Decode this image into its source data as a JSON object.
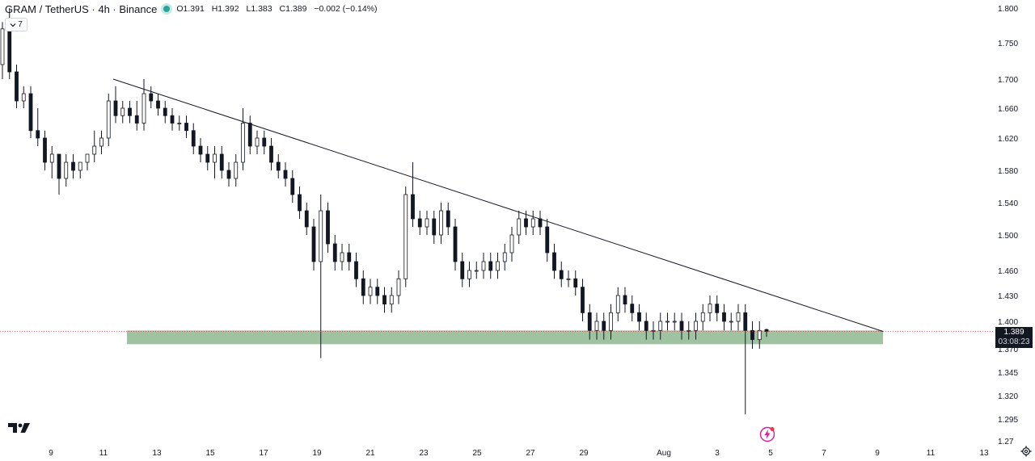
{
  "legend": {
    "symbol": "GRAM / TetherUS · 4h · Binance",
    "open": "O1.391",
    "high": "H1.392",
    "low": "L1.383",
    "close": "C1.389",
    "change": "−0.002 (−0.14%)"
  },
  "indicator_toggle": {
    "label": "7",
    "icon": "chevron-down-icon"
  },
  "last_price": {
    "value": "1.389",
    "countdown": "03:08:23"
  },
  "colors": {
    "candle": "#131722",
    "zone": "#9fc3a0",
    "trendline": "#131722",
    "legend_dot": "#26a69a",
    "price_tag_bg": "#131722",
    "flash_icon": "#d81b9a"
  },
  "icons": [
    "tradingview-logo-icon",
    "flash-icon",
    "settings-icon",
    "chevron-down-icon"
  ],
  "chart_data": {
    "type": "candlestick",
    "title": "",
    "interval": "4h",
    "y_axis": {
      "range": [
        1.27,
        1.8
      ],
      "ticks": [
        "1.800",
        "1.750",
        "1.700",
        "1.660",
        "1.620",
        "1.580",
        "1.540",
        "1.500",
        "1.460",
        "1.430",
        "1.400",
        "1.370",
        "1.345",
        "1.320",
        "1.295",
        "1.27"
      ]
    },
    "x_axis": {
      "ticks": [
        "9",
        "11",
        "13",
        "15",
        "17",
        "19",
        "21",
        "23",
        "25",
        "27",
        "29",
        "Aug",
        "3",
        "5",
        "7",
        "9",
        "11",
        "13"
      ]
    },
    "support_zone": {
      "from_date": "Jul 12",
      "to_date": "Aug 9",
      "low": 1.375,
      "high": 1.39
    },
    "trendline": {
      "from": {
        "date": "Jul 11",
        "price": 1.7
      },
      "to": {
        "date": "Aug 9",
        "price": 1.389
      }
    },
    "candles": [
      [
        1.72,
        1.78,
        1.7,
        1.77
      ],
      [
        1.77,
        1.8,
        1.7,
        1.71
      ],
      [
        1.71,
        1.72,
        1.66,
        1.67
      ],
      [
        1.67,
        1.69,
        1.66,
        1.68
      ],
      [
        1.68,
        1.69,
        1.62,
        1.63
      ],
      [
        1.63,
        1.66,
        1.61,
        1.62
      ],
      [
        1.62,
        1.63,
        1.58,
        1.59
      ],
      [
        1.59,
        1.61,
        1.57,
        1.6
      ],
      [
        1.6,
        1.6,
        1.55,
        1.57
      ],
      [
        1.57,
        1.6,
        1.56,
        1.59
      ],
      [
        1.59,
        1.6,
        1.57,
        1.58
      ],
      [
        1.58,
        1.59,
        1.57,
        1.59
      ],
      [
        1.59,
        1.6,
        1.58,
        1.6
      ],
      [
        1.6,
        1.63,
        1.59,
        1.61
      ],
      [
        1.61,
        1.63,
        1.6,
        1.62
      ],
      [
        1.62,
        1.68,
        1.61,
        1.67
      ],
      [
        1.67,
        1.69,
        1.64,
        1.65
      ],
      [
        1.65,
        1.67,
        1.64,
        1.66
      ],
      [
        1.66,
        1.67,
        1.64,
        1.65
      ],
      [
        1.65,
        1.67,
        1.63,
        1.64
      ],
      [
        1.64,
        1.7,
        1.63,
        1.68
      ],
      [
        1.68,
        1.69,
        1.66,
        1.67
      ],
      [
        1.67,
        1.68,
        1.65,
        1.66
      ],
      [
        1.66,
        1.67,
        1.64,
        1.65
      ],
      [
        1.65,
        1.66,
        1.63,
        1.64
      ],
      [
        1.64,
        1.65,
        1.63,
        1.64
      ],
      [
        1.64,
        1.65,
        1.62,
        1.63
      ],
      [
        1.63,
        1.64,
        1.6,
        1.61
      ],
      [
        1.61,
        1.62,
        1.59,
        1.6
      ],
      [
        1.6,
        1.61,
        1.58,
        1.59
      ],
      [
        1.59,
        1.61,
        1.57,
        1.6
      ],
      [
        1.6,
        1.61,
        1.57,
        1.58
      ],
      [
        1.58,
        1.59,
        1.56,
        1.57
      ],
      [
        1.57,
        1.6,
        1.56,
        1.59
      ],
      [
        1.59,
        1.66,
        1.58,
        1.64
      ],
      [
        1.64,
        1.65,
        1.6,
        1.61
      ],
      [
        1.61,
        1.63,
        1.6,
        1.62
      ],
      [
        1.62,
        1.63,
        1.6,
        1.61
      ],
      [
        1.61,
        1.62,
        1.58,
        1.59
      ],
      [
        1.59,
        1.6,
        1.57,
        1.58
      ],
      [
        1.58,
        1.59,
        1.56,
        1.57
      ],
      [
        1.57,
        1.58,
        1.54,
        1.55
      ],
      [
        1.55,
        1.56,
        1.52,
        1.53
      ],
      [
        1.53,
        1.54,
        1.5,
        1.51
      ],
      [
        1.51,
        1.52,
        1.46,
        1.47
      ],
      [
        1.47,
        1.55,
        1.36,
        1.53
      ],
      [
        1.53,
        1.54,
        1.48,
        1.49
      ],
      [
        1.49,
        1.5,
        1.46,
        1.47
      ],
      [
        1.47,
        1.49,
        1.46,
        1.48
      ],
      [
        1.48,
        1.49,
        1.46,
        1.47
      ],
      [
        1.47,
        1.48,
        1.44,
        1.45
      ],
      [
        1.45,
        1.46,
        1.42,
        1.43
      ],
      [
        1.43,
        1.45,
        1.42,
        1.44
      ],
      [
        1.44,
        1.45,
        1.42,
        1.43
      ],
      [
        1.43,
        1.44,
        1.41,
        1.42
      ],
      [
        1.42,
        1.44,
        1.41,
        1.43
      ],
      [
        1.43,
        1.46,
        1.42,
        1.45
      ],
      [
        1.45,
        1.56,
        1.44,
        1.55
      ],
      [
        1.55,
        1.59,
        1.51,
        1.52
      ],
      [
        1.52,
        1.53,
        1.5,
        1.51
      ],
      [
        1.51,
        1.53,
        1.5,
        1.52
      ],
      [
        1.52,
        1.53,
        1.49,
        1.5
      ],
      [
        1.5,
        1.54,
        1.49,
        1.53
      ],
      [
        1.53,
        1.54,
        1.5,
        1.51
      ],
      [
        1.51,
        1.52,
        1.46,
        1.47
      ],
      [
        1.47,
        1.48,
        1.44,
        1.45
      ],
      [
        1.45,
        1.47,
        1.44,
        1.46
      ],
      [
        1.46,
        1.47,
        1.45,
        1.46
      ],
      [
        1.46,
        1.48,
        1.45,
        1.47
      ],
      [
        1.47,
        1.48,
        1.45,
        1.46
      ],
      [
        1.46,
        1.48,
        1.45,
        1.47
      ],
      [
        1.47,
        1.49,
        1.46,
        1.48
      ],
      [
        1.48,
        1.51,
        1.47,
        1.5
      ],
      [
        1.5,
        1.53,
        1.49,
        1.52
      ],
      [
        1.52,
        1.53,
        1.5,
        1.51
      ],
      [
        1.51,
        1.53,
        1.5,
        1.52
      ],
      [
        1.52,
        1.53,
        1.5,
        1.51
      ],
      [
        1.51,
        1.52,
        1.47,
        1.48
      ],
      [
        1.48,
        1.49,
        1.45,
        1.46
      ],
      [
        1.46,
        1.47,
        1.44,
        1.45
      ],
      [
        1.45,
        1.46,
        1.44,
        1.45
      ],
      [
        1.45,
        1.46,
        1.43,
        1.44
      ],
      [
        1.44,
        1.45,
        1.4,
        1.41
      ],
      [
        1.41,
        1.42,
        1.38,
        1.39
      ],
      [
        1.39,
        1.41,
        1.38,
        1.4
      ],
      [
        1.4,
        1.41,
        1.38,
        1.39
      ],
      [
        1.39,
        1.42,
        1.38,
        1.41
      ],
      [
        1.41,
        1.44,
        1.4,
        1.43
      ],
      [
        1.43,
        1.44,
        1.41,
        1.42
      ],
      [
        1.42,
        1.43,
        1.4,
        1.41
      ],
      [
        1.41,
        1.42,
        1.39,
        1.4
      ],
      [
        1.4,
        1.41,
        1.38,
        1.39
      ],
      [
        1.39,
        1.4,
        1.38,
        1.39
      ],
      [
        1.39,
        1.41,
        1.38,
        1.4
      ],
      [
        1.4,
        1.41,
        1.39,
        1.4
      ],
      [
        1.4,
        1.41,
        1.39,
        1.4
      ],
      [
        1.4,
        1.41,
        1.38,
        1.39
      ],
      [
        1.39,
        1.4,
        1.38,
        1.39
      ],
      [
        1.39,
        1.41,
        1.38,
        1.4
      ],
      [
        1.4,
        1.42,
        1.39,
        1.41
      ],
      [
        1.41,
        1.43,
        1.4,
        1.42
      ],
      [
        1.42,
        1.43,
        1.4,
        1.41
      ],
      [
        1.41,
        1.42,
        1.39,
        1.4
      ],
      [
        1.4,
        1.41,
        1.39,
        1.4
      ],
      [
        1.4,
        1.42,
        1.39,
        1.41
      ],
      [
        1.41,
        1.42,
        1.3,
        1.39
      ],
      [
        1.39,
        1.4,
        1.37,
        1.38
      ],
      [
        1.38,
        1.4,
        1.37,
        1.39
      ],
      [
        1.391,
        1.392,
        1.383,
        1.389
      ]
    ]
  }
}
